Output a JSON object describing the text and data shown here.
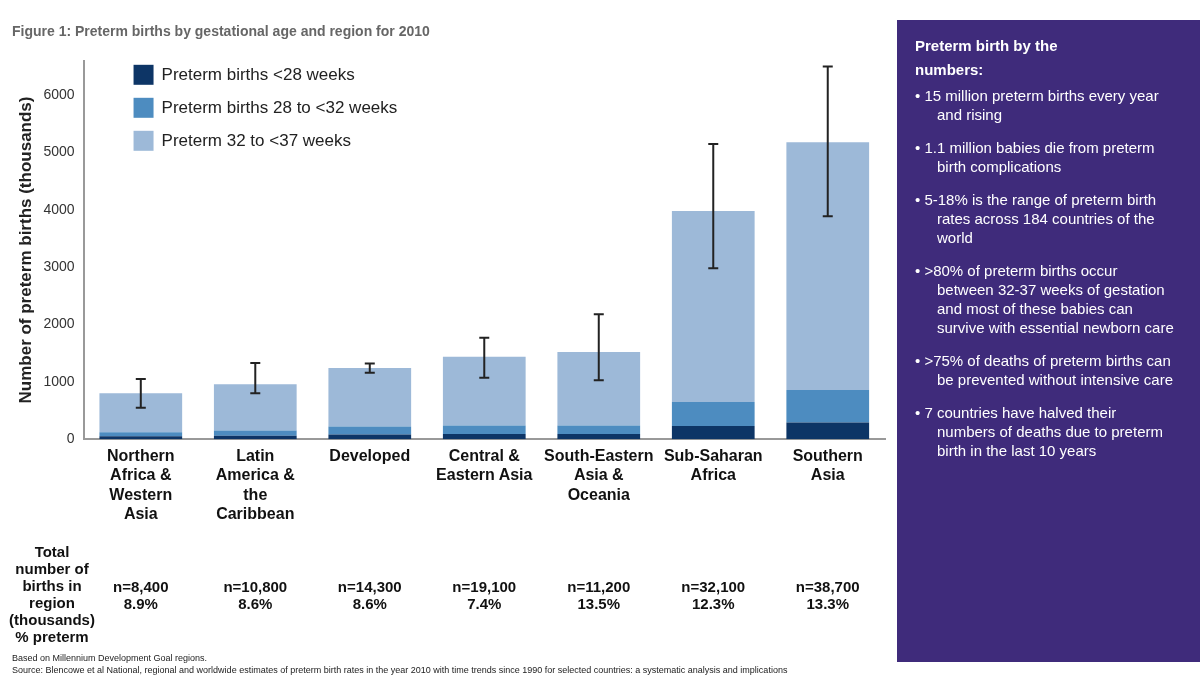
{
  "chart_data": [
    {
      "type": "bar",
      "title": "Figure 1: Preterm births by gestational age and region for 2010",
      "ylabel": "Number of preterm births (thousands)",
      "categories": [
        "Northern Africa & Western Asia",
        "Latin America & the Caribbean",
        "Developed",
        "Central & Eastern Asia",
        "South-Eastern Asia & Oceania",
        "Sub-Saharan Africa",
        "Southern Asia"
      ],
      "stacked": true,
      "series": [
        {
          "name": "Preterm births <28 weeks",
          "color": "#0d3566",
          "values": [
            50,
            60,
            80,
            90,
            90,
            230,
            290
          ]
        },
        {
          "name": "Preterm births 28 to <32 weeks",
          "color": "#4d8cc0",
          "values": [
            70,
            90,
            140,
            150,
            150,
            420,
            570
          ]
        },
        {
          "name": "Preterm 32 to <37 weeks",
          "color": "#9db9d8",
          "values": [
            680,
            810,
            1020,
            1200,
            1280,
            3330,
            4320
          ],
          "errors": [
            [
              550,
              1050
            ],
            [
              800,
              1330
            ],
            [
              1160,
              1320
            ],
            [
              1070,
              1770
            ],
            [
              1030,
              2180
            ],
            [
              2980,
              5150
            ],
            [
              3890,
              6500
            ]
          ]
        }
      ],
      "ylim": [
        0,
        6600
      ],
      "yticks": [
        0,
        1000,
        2000,
        3000,
        4000,
        5000,
        6000
      ],
      "grid": false,
      "legend": "top left",
      "annotations": [
        "Total number of births in region (thousands) % preterm",
        "n=8,400 8.9%",
        "n=10,800 8.6%",
        "n=14,300 8.6%",
        "n=19,100 7.4%",
        "n=11,200 13.5%",
        "n=32,100 12.3%",
        "n=38,700 13.3%",
        "Based on Millennium Development Goal regions.",
        "Source: Blencowe et al National, regional and worldwide estimates of preterm birth rates in the year 2010 with time trends since 1990 for selected countries: a systematic analysis and implications"
      ]
    },
    {
      "type": "other",
      "title": "Preterm birth by the numbers:",
      "annotations": [
        "• 15 million preterm births every year and rising",
        "• 1.1 million babies die from preterm birth complications",
        "• 5-18% is the range of preterm birth rates across 184 countries of the world",
        "• >80% of preterm births occur between 32-37 weeks of gestation and most of these babies can survive with essential newborn care",
        "• >75% of deaths of preterm births can be prevented without intensive care",
        "• 7 countries have halved their numbers of deaths due to preterm birth in the last 10 years"
      ]
    }
  ]
}
